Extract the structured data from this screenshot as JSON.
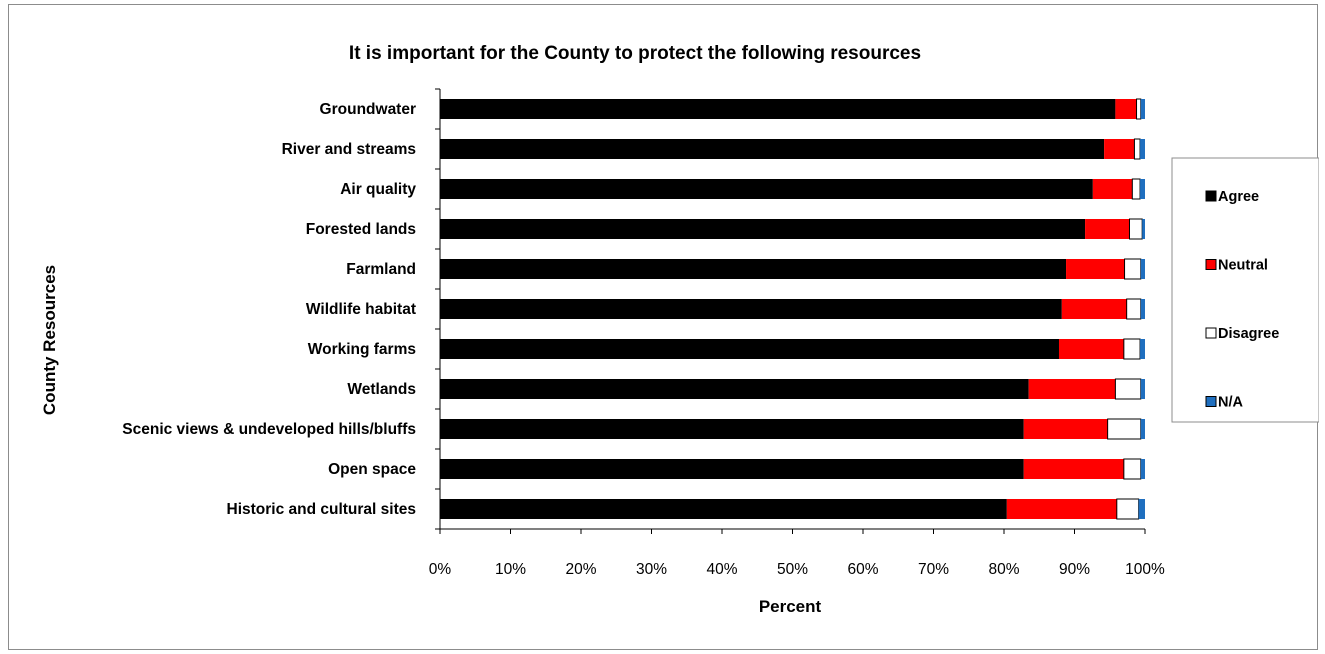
{
  "chart_data": {
    "type": "bar",
    "orientation": "horizontal",
    "stacked": "percent",
    "title": "It is important for the County to protect the following resources",
    "xlabel": "Percent",
    "ylabel": "County Resources",
    "xlim": [
      0,
      100
    ],
    "xticks": [
      "0%",
      "10%",
      "20%",
      "30%",
      "40%",
      "50%",
      "60%",
      "70%",
      "80%",
      "90%",
      "100%"
    ],
    "grid": false,
    "legend_position": "right",
    "categories": [
      "Groundwater",
      "River and streams",
      "Air quality",
      "Forested lands",
      "Farmland",
      "Wildlife habitat",
      "Working farms",
      "Wetlands",
      "Scenic views & undeveloped hills/bluffs",
      "Open space",
      "Historic and cultural sites"
    ],
    "series": [
      {
        "name": "Agree",
        "color": "#000000",
        "values": [
          95.8,
          94.2,
          92.6,
          91.5,
          88.8,
          88.2,
          87.8,
          83.5,
          82.8,
          82.8,
          80.4
        ]
      },
      {
        "name": "Neutral",
        "color": "#ff0000",
        "values": [
          3.0,
          4.3,
          5.6,
          6.3,
          8.3,
          9.2,
          9.2,
          12.3,
          11.9,
          14.2,
          15.6
        ]
      },
      {
        "name": "Disagree",
        "color": "#ffffff",
        "values": [
          0.6,
          0.8,
          1.1,
          1.8,
          2.3,
          2.0,
          2.3,
          3.6,
          4.7,
          2.4,
          3.1
        ]
      },
      {
        "name": "N/A",
        "color": "#1f6fbf",
        "values": [
          0.6,
          0.7,
          0.7,
          0.4,
          0.6,
          0.6,
          0.7,
          0.6,
          0.6,
          0.6,
          0.9
        ]
      }
    ]
  }
}
